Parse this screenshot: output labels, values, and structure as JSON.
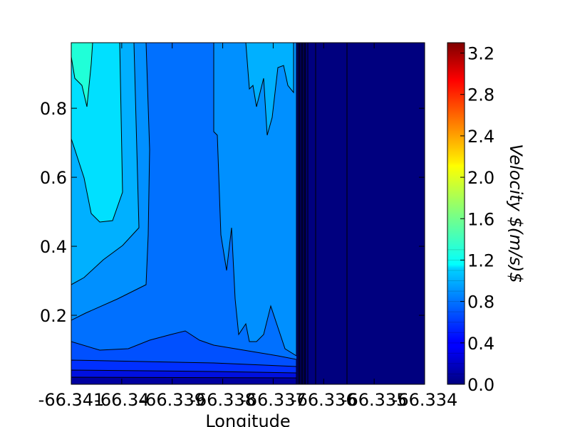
{
  "chart_data": {
    "type": "heatmap",
    "subtype": "filled-contour",
    "title": "",
    "xlabel": "Longitude",
    "ylabel": "",
    "colorbar_label": "Velocity $(m/s)$",
    "colormap": "jet",
    "grid": false,
    "x_tick_labels": [
      "-66.341",
      "-66.34",
      "-66.339",
      "-66.338",
      "-66.337",
      "-66.336",
      "-66.335",
      "-66.334"
    ],
    "x_ticks": [
      -66.341,
      -66.34,
      -66.339,
      -66.338,
      -66.337,
      -66.336,
      -66.335,
      -66.334
    ],
    "xlim": [
      -66.341,
      -66.334
    ],
    "y_tick_labels": [
      "0.2",
      "0.4",
      "0.6",
      "0.8"
    ],
    "y_ticks": [
      0.2,
      0.4,
      0.6,
      0.8
    ],
    "ylim": [
      0.0,
      0.99
    ],
    "colorbar_ticks": [
      "0.0",
      "0.4",
      "0.8",
      "1.2",
      "1.6",
      "2.0",
      "2.4",
      "2.8",
      "3.2"
    ],
    "colorbar_range": [
      0.0,
      3.3
    ],
    "contour_levels": [
      0.0,
      0.1,
      0.2,
      0.3,
      0.4,
      0.5,
      0.6,
      0.7,
      0.8,
      0.9,
      1.0,
      1.1,
      1.2,
      1.3
    ],
    "velocity_profiles": [
      {
        "x": -66.341,
        "v": [
          0.2,
          0.7,
          0.85,
          1.0,
          1.1,
          1.15,
          1.2,
          1.23,
          1.25,
          1.27
        ]
      },
      {
        "x": -66.3405,
        "v": [
          0.2,
          0.7,
          0.85,
          1.0,
          1.08,
          1.12,
          1.17,
          1.2,
          1.23,
          1.25
        ]
      },
      {
        "x": -66.3395,
        "v": [
          0.2,
          0.75,
          0.85,
          0.95,
          1.0,
          1.03,
          1.05,
          1.05,
          1.03,
          1.0
        ]
      },
      {
        "x": -66.3385,
        "v": [
          0.2,
          0.7,
          0.85,
          0.9,
          0.9,
          0.9,
          0.9,
          0.9,
          0.9,
          0.9
        ]
      },
      {
        "x": -66.3375,
        "v": [
          0.2,
          0.75,
          0.85,
          0.95,
          0.95,
          0.95,
          0.97,
          0.97,
          0.98,
          1.0
        ]
      },
      {
        "x": -66.337,
        "v": [
          0.2,
          0.8,
          0.95,
          1.0,
          1.0,
          1.0,
          1.0,
          1.0,
          1.0,
          1.02
        ]
      },
      {
        "x": -66.3368,
        "v": [
          0.05,
          0.1,
          0.1,
          0.1,
          0.1,
          0.1,
          0.1,
          0.1,
          0.1,
          0.1
        ]
      },
      {
        "x": -66.334,
        "v": [
          0.05,
          0.05,
          0.05,
          0.05,
          0.05,
          0.05,
          0.05,
          0.05,
          0.05,
          0.05
        ]
      }
    ]
  }
}
